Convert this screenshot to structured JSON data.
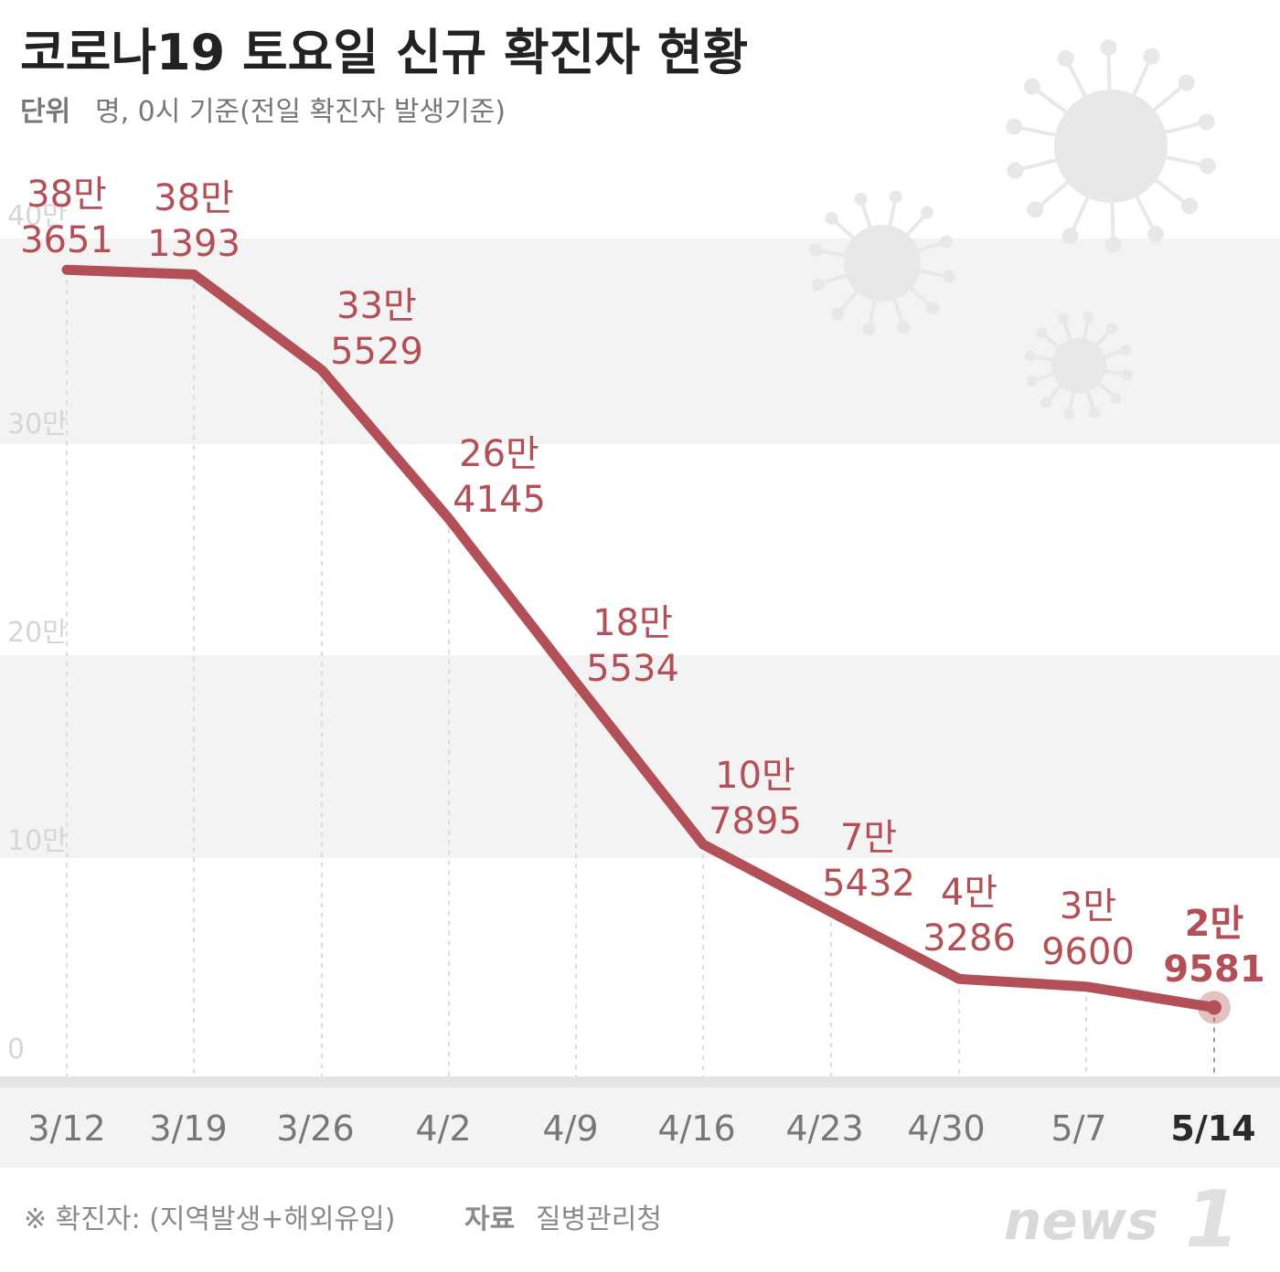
{
  "header": {
    "title": "코로나19 토요일 신규 확진자 현황",
    "unit_label": "단위",
    "unit_text": "명, 0시 기준(전일 확진자 발생기준)"
  },
  "footer": {
    "note": "※ 확진자: (지역발생+해외유입)",
    "source_label": "자료",
    "source": "질병관리청",
    "logo_text": "news",
    "logo_mark": "1"
  },
  "colors": {
    "line": "#b34f56",
    "label": "#b34f56",
    "band": "#f3f3f3",
    "axis_band": "#e4e4e4"
  },
  "chart_data": {
    "type": "line",
    "title": "코로나19 토요일 신규 확진자 현황",
    "xlabel": "",
    "ylabel": "명",
    "ylim": [
      0,
      400000
    ],
    "yticks": [
      0,
      100000,
      200000,
      300000,
      400000
    ],
    "ytick_labels": [
      "0",
      "10만",
      "20만",
      "30만",
      "40만"
    ],
    "categories": [
      "3/12",
      "3/19",
      "3/26",
      "4/2",
      "4/9",
      "4/16",
      "4/23",
      "4/30",
      "5/7",
      "5/14"
    ],
    "values": [
      383651,
      381393,
      335529,
      264145,
      185534,
      107895,
      75432,
      43286,
      39600,
      29581
    ],
    "value_labels": [
      [
        "38만",
        "3651"
      ],
      [
        "38만",
        "1393"
      ],
      [
        "33만",
        "5529"
      ],
      [
        "26만",
        "4145"
      ],
      [
        "18만",
        "5534"
      ],
      [
        "10만",
        "7895"
      ],
      [
        "7만",
        "5432"
      ],
      [
        "4만",
        "3286"
      ],
      [
        "3만",
        "9600"
      ],
      [
        "2만",
        "9581"
      ]
    ],
    "grid": true,
    "legend": "none"
  }
}
